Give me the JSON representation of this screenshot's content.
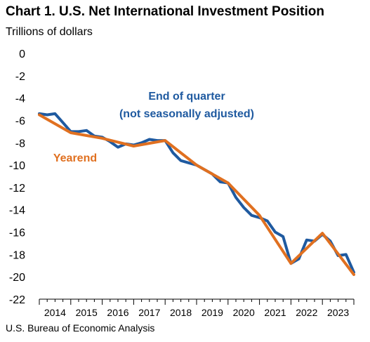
{
  "title": "Chart 1. U.S. Net International Investment Position",
  "unit_label": "Trillions of dollars",
  "source": "U.S. Bureau of Economic Analysis",
  "colors": {
    "quarterly": "#1f5aa0",
    "yearend": "#e07020",
    "axis": "#000000",
    "background": "#ffffff"
  },
  "chart_data": {
    "type": "line",
    "title": "Chart 1. U.S. Net International Investment Position",
    "ylabel": "Trillions of dollars",
    "xlabel": "",
    "ylim": [
      -22,
      0
    ],
    "yticks": [
      0,
      -2,
      -4,
      -6,
      -8,
      -10,
      -12,
      -14,
      -16,
      -18,
      -20,
      -22
    ],
    "xlim": [
      2013.75,
      2023.75
    ],
    "xtick_labels": [
      "2014",
      "2015",
      "2016",
      "2017",
      "2018",
      "2019",
      "2020",
      "2021",
      "2022",
      "2023"
    ],
    "grid": false,
    "annotations": [
      {
        "text_lines": [
          "End of quarter",
          "(not seasonally adjusted)"
        ],
        "series": "End of quarter (not seasonally adjusted)"
      },
      {
        "text_lines": [
          "Yearend"
        ],
        "series": "Yearend"
      }
    ],
    "series": [
      {
        "name": "End of quarter (not seasonally adjusted)",
        "color": "#1f5aa0",
        "x": [
          2013.75,
          2014.0,
          2014.25,
          2014.5,
          2014.75,
          2015.0,
          2015.25,
          2015.5,
          2015.75,
          2016.0,
          2016.25,
          2016.5,
          2016.75,
          2017.0,
          2017.25,
          2017.5,
          2017.75,
          2018.0,
          2018.25,
          2018.5,
          2018.75,
          2019.0,
          2019.25,
          2019.5,
          2019.75,
          2020.0,
          2020.25,
          2020.5,
          2020.75,
          2021.0,
          2021.25,
          2021.5,
          2021.75,
          2022.0,
          2022.25,
          2022.5,
          2022.75,
          2023.0,
          2023.25,
          2023.5,
          2023.75
        ],
        "values": [
          -5.4,
          -5.5,
          -5.4,
          -6.2,
          -7.0,
          -7.0,
          -6.9,
          -7.4,
          -7.5,
          -7.9,
          -8.4,
          -8.1,
          -8.2,
          -8.0,
          -7.7,
          -7.8,
          -7.8,
          -8.9,
          -9.6,
          -9.8,
          -10.0,
          -10.4,
          -10.8,
          -11.5,
          -11.6,
          -12.9,
          -13.8,
          -14.5,
          -14.7,
          -15.0,
          -16.0,
          -16.4,
          -18.8,
          -18.4,
          -16.7,
          -16.8,
          -16.2,
          -16.8,
          -18.1,
          -18.0,
          -19.6
        ]
      },
      {
        "name": "Yearend",
        "color": "#e07020",
        "x": [
          2013.75,
          2014.75,
          2015.75,
          2016.75,
          2017.75,
          2018.75,
          2019.75,
          2020.75,
          2021.75,
          2022.75,
          2023.75
        ],
        "values": [
          -5.5,
          -7.1,
          -7.6,
          -8.3,
          -7.8,
          -10.0,
          -11.6,
          -14.5,
          -18.8,
          -16.1,
          -19.8
        ]
      }
    ]
  }
}
